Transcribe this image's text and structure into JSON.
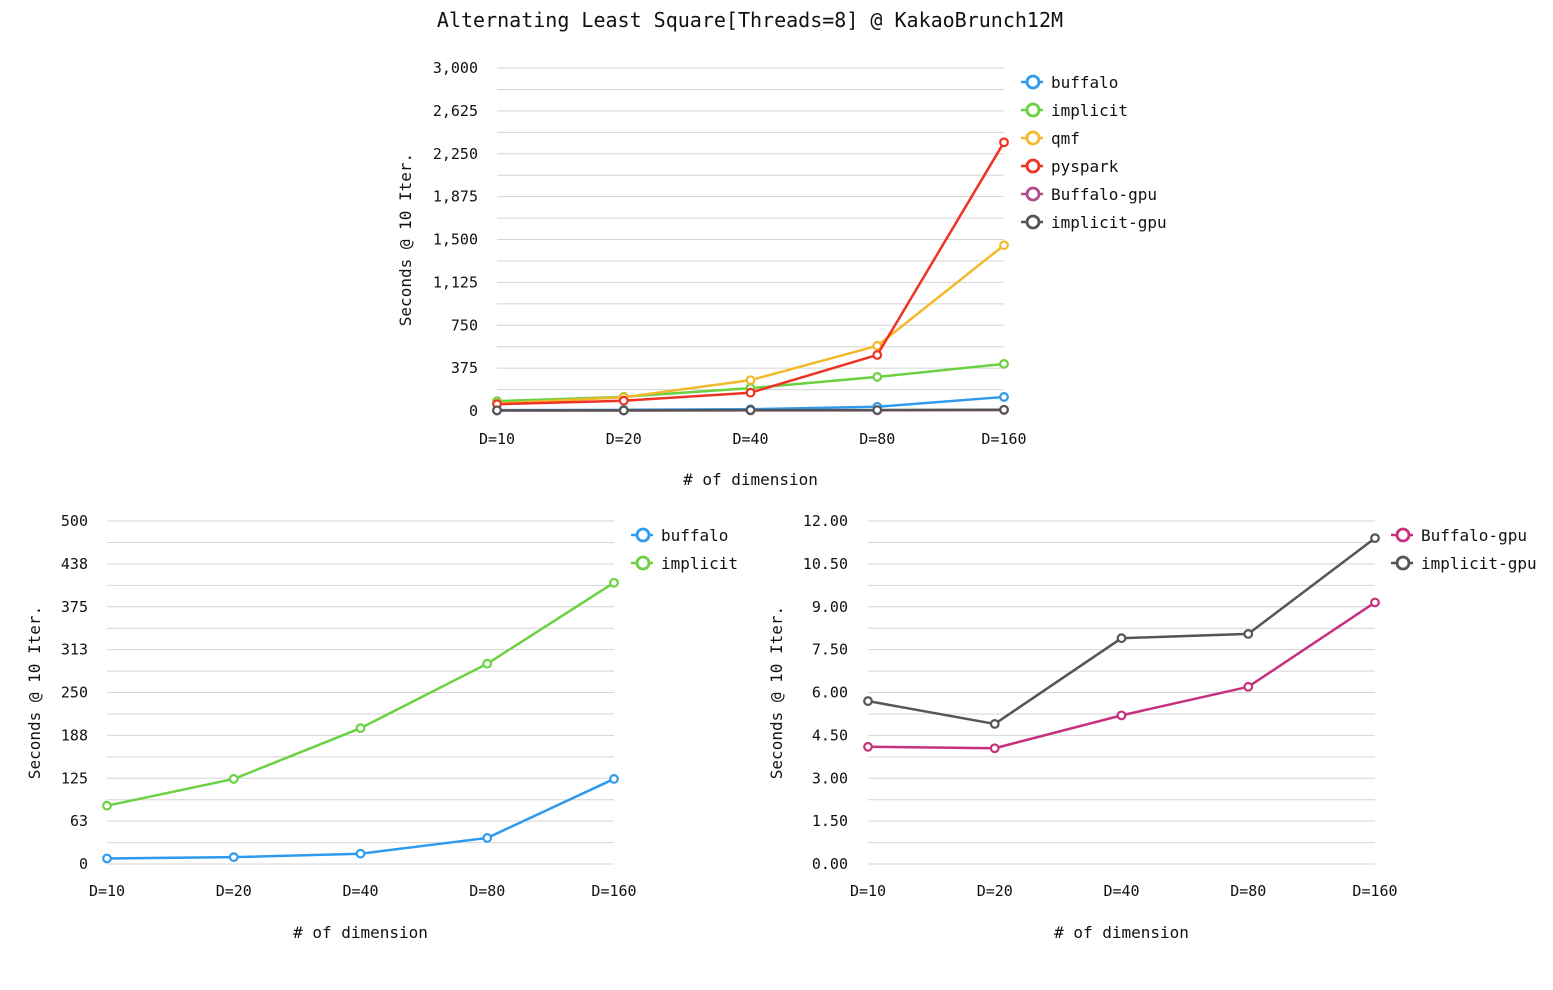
{
  "title": "Alternating Least Square[Threads=8] @ KakaoBrunch12M",
  "colors": {
    "buffalo": "#2e9bef",
    "implicit": "#6cd142",
    "qmf": "#f4b92b",
    "pyspark": "#ee3324",
    "buffalo_gpu_top": "#b24b8e",
    "buffalo_gpu": "#c7307f",
    "implicit_gpu": "#555555",
    "grid": "#d4d4d4"
  },
  "chart_data": [
    {
      "id": "top",
      "type": "line",
      "title": "Alternating Least Square[Threads=8] @ KakaoBrunch12M",
      "xlabel": "# of dimension",
      "ylabel": "Seconds @ 10 Iter.",
      "categories": [
        "D=10",
        "D=20",
        "D=40",
        "D=80",
        "D=160"
      ],
      "ylim": [
        0,
        3000
      ],
      "yticks": [
        "0",
        "375",
        "750",
        "1,125",
        "1,500",
        "1,875",
        "2,250",
        "2,625",
        "3,000"
      ],
      "grid": true,
      "legend": "right",
      "series": [
        {
          "name": "buffalo",
          "color": "#2e9bef",
          "values": [
            8,
            10,
            15,
            37,
            123
          ]
        },
        {
          "name": "implicit",
          "color": "#6cd142",
          "values": [
            86,
            124,
            200,
            298,
            412
          ]
        },
        {
          "name": "qmf",
          "color": "#f4b92b",
          "values": [
            65,
            120,
            270,
            570,
            1450
          ]
        },
        {
          "name": "pyspark",
          "color": "#ee3324",
          "values": [
            60,
            90,
            160,
            490,
            2350
          ]
        },
        {
          "name": "Buffalo-gpu",
          "color": "#b24b8e",
          "values": [
            4,
            4,
            5,
            6,
            9
          ]
        },
        {
          "name": "implicit-gpu",
          "color": "#555555",
          "values": [
            6,
            5,
            8,
            8,
            11
          ]
        }
      ]
    },
    {
      "id": "bottom-left",
      "type": "line",
      "xlabel": "# of dimension",
      "ylabel": "Seconds @ 10 Iter.",
      "categories": [
        "D=10",
        "D=20",
        "D=40",
        "D=80",
        "D=160"
      ],
      "ylim": [
        0,
        500
      ],
      "yticks": [
        "0",
        "63",
        "125",
        "188",
        "250",
        "313",
        "375",
        "438",
        "500"
      ],
      "grid": true,
      "legend": "right",
      "series": [
        {
          "name": "buffalo",
          "color": "#2e9bef",
          "values": [
            8,
            10,
            15,
            38,
            124
          ]
        },
        {
          "name": "implicit",
          "color": "#6cd142",
          "values": [
            85,
            124,
            198,
            292,
            410
          ]
        }
      ]
    },
    {
      "id": "bottom-right",
      "type": "line",
      "xlabel": "# of dimension",
      "ylabel": "Seconds @ 10 Iter.",
      "categories": [
        "D=10",
        "D=20",
        "D=40",
        "D=80",
        "D=160"
      ],
      "ylim": [
        0,
        12
      ],
      "yticks": [
        "0.00",
        "1.50",
        "3.00",
        "4.50",
        "6.00",
        "7.50",
        "9.00",
        "10.50",
        "12.00"
      ],
      "grid": true,
      "legend": "right",
      "series": [
        {
          "name": "Buffalo-gpu",
          "color": "#c7307f",
          "values": [
            4.1,
            4.05,
            5.2,
            6.2,
            9.15
          ]
        },
        {
          "name": "implicit-gpu",
          "color": "#555555",
          "values": [
            5.7,
            4.9,
            7.9,
            8.05,
            11.4
          ]
        }
      ]
    }
  ]
}
